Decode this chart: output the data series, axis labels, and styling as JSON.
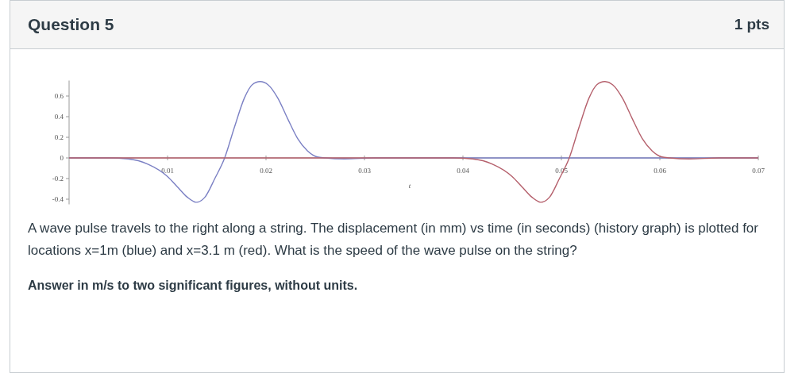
{
  "chart_data": {
    "type": "line",
    "title": "Question 5",
    "xlabel": "t",
    "annotations": [
      "1 pts",
      "A wave pulse travels to the right along a string. The displacement (in mm) vs time (in seconds) (history graph) is plotted for locations x=1m (blue) and x=3.1 m (red). What is the speed of the wave pulse on  the string?",
      "Answer in m/s to two significant figures, without units."
    ],
    "series": [
      {
        "color": "#7b80c4",
        "x": [
          0,
          0.004,
          0.006,
          0.008,
          0.01,
          0.011,
          0.012,
          0.0129,
          0.0138,
          0.0148,
          0.0158,
          0.0168,
          0.0178,
          0.0186,
          0.0194,
          0.0202,
          0.0212,
          0.0222,
          0.0232,
          0.0242,
          0.0252,
          0.026,
          0.028,
          0.031,
          0.07
        ],
        "values": [
          0,
          0,
          -0.01,
          -0.06,
          -0.18,
          -0.28,
          -0.38,
          -0.43,
          -0.38,
          -0.2,
          0,
          0.3,
          0.58,
          0.71,
          0.74,
          0.71,
          0.58,
          0.38,
          0.19,
          0.07,
          0.01,
          0,
          -0.01,
          0,
          0
        ]
      },
      {
        "color": "#b5606c",
        "x": [
          0,
          0.039,
          0.041,
          0.043,
          0.045,
          0.046,
          0.047,
          0.0479,
          0.0488,
          0.0498,
          0.0508,
          0.0518,
          0.0528,
          0.0536,
          0.0544,
          0.0552,
          0.0562,
          0.0572,
          0.0582,
          0.0592,
          0.0602,
          0.061,
          0.063,
          0.066,
          0.07
        ],
        "values": [
          0,
          0,
          -0.01,
          -0.06,
          -0.18,
          -0.28,
          -0.38,
          -0.43,
          -0.38,
          -0.2,
          0,
          0.3,
          0.58,
          0.71,
          0.74,
          0.71,
          0.58,
          0.38,
          0.19,
          0.07,
          0.01,
          0,
          -0.01,
          0,
          0
        ]
      }
    ],
    "xlim": [
      0,
      0.07
    ],
    "xticks": [
      0.01,
      0.02,
      0.03,
      0.04,
      0.05,
      0.06,
      0.07
    ],
    "ylim": [
      -0.45,
      0.75
    ],
    "yticks": [
      -0.4,
      -0.2,
      0,
      0.2,
      0.4,
      0.6
    ],
    "marker": "none",
    "line_style": "solid"
  }
}
